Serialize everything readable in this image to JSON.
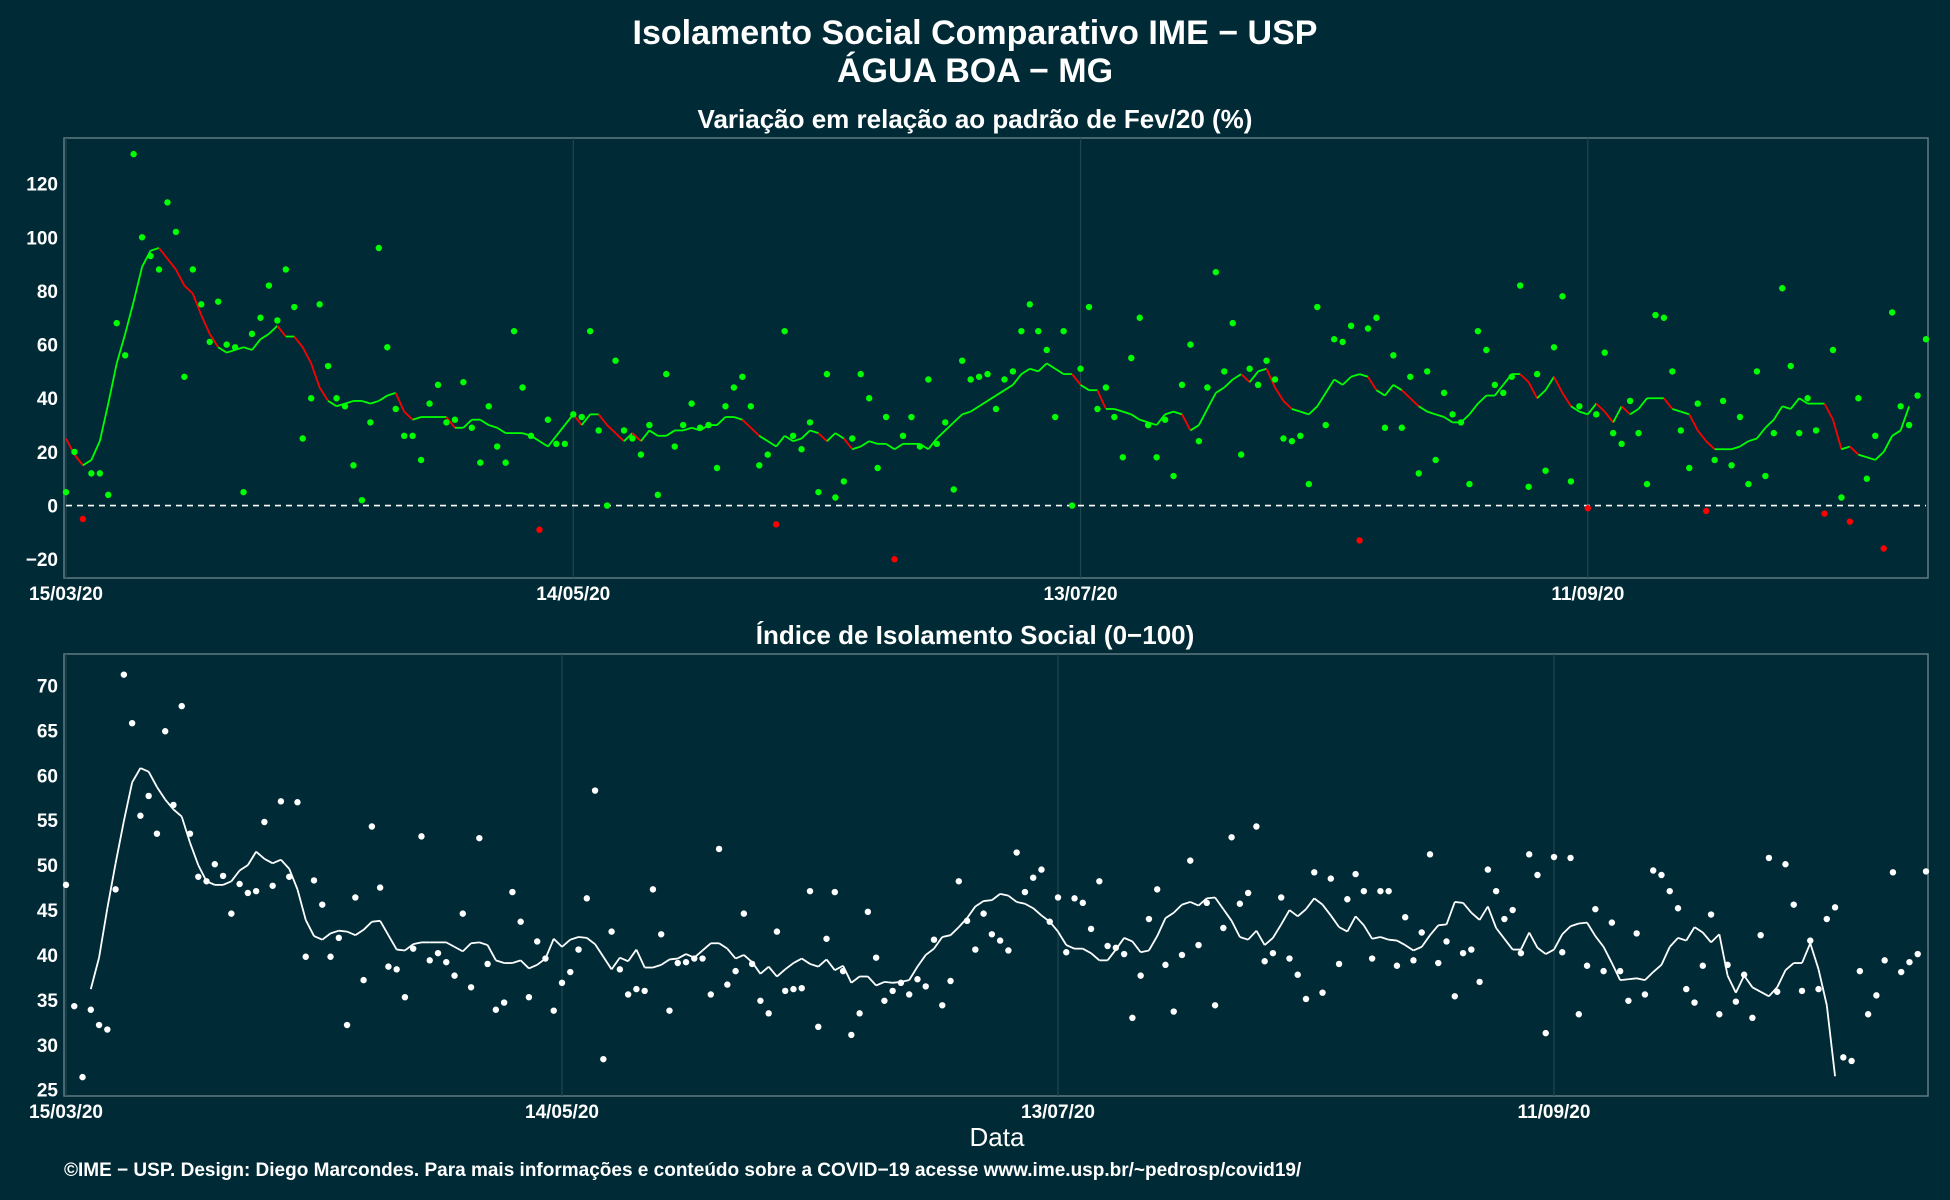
{
  "title_line1": "Isolamento Social Comparativo IME − USP",
  "title_line2": "ÁGUA BOA − MG",
  "xlabel": "Data",
  "caption": "©IME − USP. Design: Diego Marcondes. Para mais informações e conteúdo sobre a COVID−19 acesse www.ime.usp.br/~pedrosp/covid19/",
  "colors": {
    "background": "#002b36",
    "panel_border": "#5f7a80",
    "grid": "#1d4650",
    "positive": "#00ff00",
    "negative": "#ff0000",
    "index": "#ffffff"
  },
  "chart_data": [
    {
      "type": "scatter",
      "title": "Variação em relação ao padrão de Fev/20 (%)",
      "series_kind": "daily points with 7-day moving average line; green = positive variation, red = negative",
      "x_start": "15/03/20",
      "x_end": "16/10/20",
      "x_ticks": [
        "15/03/20",
        "14/05/20",
        "13/07/20",
        "11/09/20"
      ],
      "x_tick_offsets_days": [
        0,
        60,
        120,
        180
      ],
      "ylim": [
        -27,
        137
      ],
      "y_ticks": [
        -20,
        0,
        20,
        40,
        60,
        80,
        100,
        120
      ],
      "reference_line": 0,
      "values": [
        5,
        20,
        -5,
        12,
        12,
        4,
        68,
        56,
        131,
        100,
        93,
        88,
        113,
        102,
        48,
        88,
        75,
        61,
        76,
        60,
        59,
        5,
        64,
        70,
        82,
        69,
        88,
        74,
        25,
        40,
        75,
        52,
        40,
        37,
        15,
        2,
        31,
        96,
        59,
        36,
        26,
        26,
        17,
        38,
        45,
        31,
        32,
        46,
        29,
        16,
        37,
        22,
        16,
        65,
        44,
        26,
        -9,
        32,
        23,
        23,
        34,
        33,
        65,
        28,
        0,
        54,
        28,
        25,
        19,
        30,
        4,
        49,
        22,
        30,
        38,
        29,
        30,
        14,
        37,
        44,
        48,
        37,
        15,
        19,
        -7,
        65,
        26,
        21,
        31,
        5,
        49,
        3,
        9,
        25,
        49,
        40,
        14,
        33,
        -20,
        26,
        33,
        22,
        47,
        23,
        31,
        6,
        54,
        47,
        48,
        49,
        36,
        47,
        50,
        65,
        75,
        65,
        58,
        33,
        65,
        0,
        51,
        74,
        36,
        44,
        33,
        18,
        55,
        70,
        30,
        18,
        32,
        11,
        45,
        60,
        24,
        44,
        87,
        50,
        68,
        19,
        51,
        45,
        54,
        47,
        25,
        24,
        26,
        8,
        74,
        30,
        62,
        61,
        67,
        -13,
        66,
        70,
        29,
        56,
        29,
        48,
        12,
        50,
        17,
        42,
        34,
        31,
        8,
        65,
        58,
        45,
        42,
        48,
        82,
        7,
        49,
        13,
        59,
        78,
        9,
        37,
        -1,
        34,
        57,
        27,
        23,
        39,
        27,
        8,
        71,
        70,
        50,
        28,
        14,
        38,
        -2,
        17,
        39,
        15,
        33,
        8,
        50,
        11,
        27,
        81,
        52,
        27,
        40,
        28,
        -3,
        58,
        3,
        -6,
        40,
        10,
        26,
        -16,
        72,
        37,
        30,
        41,
        62
      ],
      "moving_average": [
        25,
        19,
        15,
        17,
        24,
        38,
        53,
        64,
        76,
        89,
        95,
        96,
        92,
        88,
        82,
        79,
        71,
        64,
        59,
        57,
        58,
        59,
        58,
        62,
        64,
        67,
        63,
        63,
        59,
        53,
        44,
        39,
        37,
        38,
        39,
        39,
        38,
        39,
        41,
        42,
        35,
        32,
        33,
        33,
        33,
        33,
        29,
        29,
        32,
        32,
        30,
        29,
        27,
        27,
        27,
        26,
        24,
        22,
        26,
        30,
        34,
        30,
        34,
        34,
        30,
        27,
        24,
        27,
        24,
        28,
        26,
        26,
        28,
        28,
        29,
        28,
        30,
        30,
        33,
        33,
        32,
        29,
        26,
        24,
        22,
        26,
        24,
        25,
        28,
        27,
        24,
        27,
        25,
        21,
        22,
        24,
        23,
        23,
        21,
        23,
        23,
        23,
        21,
        25,
        28,
        31,
        34,
        35,
        37,
        39,
        41,
        43,
        45,
        49,
        51,
        50,
        53,
        51,
        49,
        49,
        45,
        43,
        43,
        36,
        36,
        35,
        34,
        32,
        31,
        30,
        34,
        35,
        34,
        28,
        30,
        36,
        42,
        44,
        47,
        49,
        46,
        50,
        51,
        44,
        39,
        36,
        35,
        34,
        37,
        42,
        47,
        45,
        48,
        49,
        48,
        43,
        41,
        45,
        43,
        40,
        37,
        35,
        34,
        33,
        31,
        31,
        34,
        38,
        41,
        41,
        45,
        49,
        49,
        46,
        40,
        43,
        48,
        42,
        37,
        35,
        34,
        38,
        35,
        31,
        37,
        34,
        36,
        40,
        40,
        40,
        36,
        35,
        34,
        28,
        24,
        21,
        21,
        21,
        22,
        24,
        25,
        29,
        32,
        37,
        36,
        40,
        38,
        38,
        38,
        32,
        21,
        22,
        19,
        18,
        17,
        20,
        26,
        28,
        37
      ]
    },
    {
      "type": "scatter",
      "title": "Índice de Isolamento Social (0−100)",
      "series_kind": "daily points with 7-day moving average line",
      "x_start": "15/03/20",
      "x_end": "16/10/20",
      "x_ticks": [
        "15/03/20",
        "14/05/20",
        "13/07/20",
        "11/09/20"
      ],
      "x_tick_offsets_days": [
        0,
        60,
        120,
        180
      ],
      "ylim": [
        24.3,
        73.5
      ],
      "y_ticks": [
        25,
        30,
        35,
        40,
        45,
        50,
        55,
        60,
        65,
        70
      ],
      "values": [
        47.8,
        34.3,
        26.4,
        33.9,
        32.2,
        31.7,
        47.3,
        71.2,
        65.8,
        55.5,
        57.7,
        53.5,
        64.9,
        56.7,
        67.7,
        53.5,
        48.7,
        48.2,
        50.1,
        48.8,
        44.6,
        47.9,
        46.9,
        47.1,
        54.8,
        47.7,
        57.1,
        48.7,
        57.0,
        39.8,
        48.3,
        45.6,
        39.8,
        41.9,
        32.2,
        46.4,
        37.2,
        54.3,
        47.5,
        38.7,
        38.4,
        35.3,
        40.7,
        53.2,
        39.4,
        40.2,
        39.2,
        37.7,
        44.6,
        36.4,
        53.0,
        39.0,
        33.9,
        34.7,
        47.0,
        43.7,
        35.3,
        41.5,
        39.6,
        33.8,
        36.9,
        38.1,
        40.6,
        46.3,
        58.3,
        28.4,
        42.6,
        38.4,
        35.6,
        36.2,
        36.0,
        47.3,
        42.3,
        33.8,
        39.1,
        39.2,
        39.6,
        39.6,
        35.6,
        51.8,
        36.7,
        38.2,
        44.6,
        39.0,
        34.9,
        33.5,
        42.6,
        36.0,
        36.2,
        36.3,
        47.1,
        32.0,
        41.8,
        47.0,
        38.2,
        31.1,
        33.5,
        44.8,
        39.7,
        34.9,
        36.0,
        36.9,
        35.6,
        37.3,
        36.5,
        41.7,
        34.4,
        37.1,
        48.2,
        43.8,
        40.6,
        44.6,
        42.3,
        41.6,
        40.5,
        51.4,
        47.0,
        48.6,
        49.5,
        43.7,
        46.4,
        40.3,
        46.3,
        45.8,
        42.9,
        48.2,
        41.0,
        40.8,
        40.1,
        33.0,
        37.7,
        44.0,
        47.3,
        38.9,
        33.7,
        40.0,
        50.5,
        41.1,
        45.8,
        34.4,
        43.0,
        53.1,
        45.7,
        46.9,
        54.3,
        39.3,
        40.2,
        46.4,
        39.6,
        37.8,
        35.1,
        49.2,
        35.8,
        48.5,
        39.0,
        46.2,
        49.0,
        47.1,
        39.6,
        47.1,
        47.1,
        38.8,
        44.2,
        39.4,
        42.5,
        51.2,
        39.1,
        41.5,
        35.4,
        40.2,
        40.6,
        37.0,
        49.5,
        47.1,
        44.0,
        45.0,
        40.2,
        51.2,
        48.9,
        31.3,
        50.9,
        40.3,
        50.8,
        33.4,
        38.8,
        45.1,
        38.2,
        43.6,
        38.2,
        34.9,
        42.4,
        35.6,
        49.4,
        48.9,
        47.1,
        45.2,
        36.2,
        34.7,
        38.8,
        44.5,
        33.4,
        38.9,
        34.8,
        37.8,
        33.0,
        42.2,
        50.8,
        35.9,
        50.1,
        45.6,
        36.0,
        41.6,
        36.2,
        44.0,
        45.3,
        28.6,
        28.2,
        38.2,
        33.4,
        35.5,
        39.4,
        49.2,
        38.1,
        39.2,
        40.1,
        49.3
      ],
      "moving_average": [
        null,
        null,
        null,
        36.2,
        39.7,
        45.2,
        50.2,
        54.9,
        59.2,
        60.8,
        60.4,
        58.7,
        57.3,
        56.2,
        55.4,
        52.5,
        50.0,
        48.2,
        47.8,
        47.8,
        48.2,
        49.4,
        50.0,
        51.5,
        50.7,
        50.2,
        50.6,
        49.6,
        47.3,
        43.9,
        42.1,
        41.7,
        42.4,
        42.7,
        42.6,
        42.2,
        42.8,
        43.7,
        43.8,
        42.2,
        40.6,
        40.5,
        41.2,
        41.4,
        41.4,
        41.4,
        41.4,
        40.9,
        40.4,
        41.3,
        41.4,
        41.1,
        39.4,
        39.1,
        39.1,
        39.4,
        38.5,
        38.9,
        39.6,
        41.8,
        40.9,
        41.7,
        42.0,
        41.9,
        41.2,
        39.8,
        38.4,
        39.7,
        39.3,
        40.6,
        38.6,
        38.6,
        38.9,
        39.5,
        39.6,
        40.1,
        39.7,
        40.5,
        41.3,
        41.3,
        40.7,
        39.6,
        40.0,
        39.2,
        37.9,
        38.7,
        37.6,
        38.4,
        39.1,
        39.6,
        39.0,
        38.7,
        39.5,
        38.3,
        38.8,
        36.9,
        37.6,
        37.6,
        36.6,
        37.0,
        36.9,
        37.0,
        37.2,
        38.7,
        40.0,
        40.7,
        42.0,
        42.2,
        43.1,
        44.1,
        45.4,
        46.0,
        46.1,
        46.8,
        46.6,
        45.9,
        45.7,
        45.2,
        44.4,
        43.7,
        42.6,
        41.1,
        40.7,
        40.7,
        40.2,
        39.4,
        39.4,
        40.6,
        41.9,
        41.5,
        40.3,
        40.5,
        42.1,
        44.1,
        44.7,
        45.6,
        45.9,
        45.5,
        46.3,
        46.4,
        45.1,
        43.8,
        42.0,
        41.7,
        42.7,
        41.1,
        41.9,
        43.4,
        45.0,
        44.3,
        45.1,
        46.3,
        45.6,
        44.4,
        43.1,
        42.6,
        44.3,
        43.3,
        41.8,
        42.0,
        41.7,
        41.6,
        41.1,
        40.5,
        40.9,
        42.2,
        43.3,
        43.4,
        45.9,
        45.8,
        44.7,
        43.9,
        45.4,
        43.0,
        41.8,
        40.6,
        40.6,
        42.5,
        40.8,
        40.1,
        40.6,
        42.3,
        43.2,
        43.5,
        43.6,
        42.1,
        40.9,
        39.1,
        37.2,
        37.3,
        37.4,
        37.2,
        38.1,
        38.9,
        40.9,
        41.9,
        41.6,
        43.1,
        42.5,
        41.4,
        42.3,
        37.7,
        35.8,
        37.7,
        36.4,
        35.9,
        35.4,
        36.4,
        38.3,
        39.1,
        39.1,
        41.3,
        38.4,
        34.4,
        26.5
      ]
    }
  ]
}
